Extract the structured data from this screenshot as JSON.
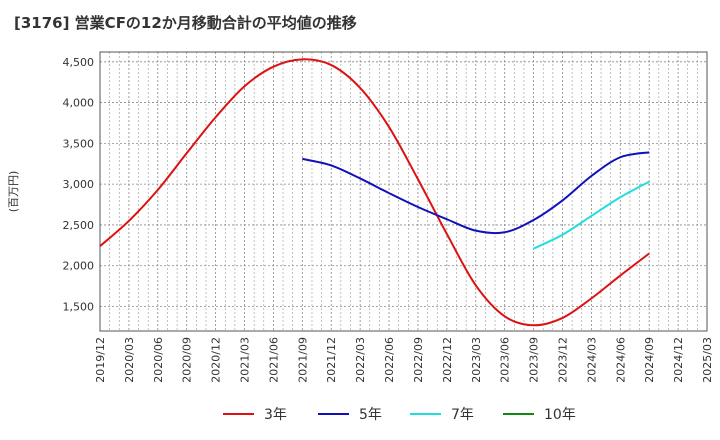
{
  "chart_data": {
    "type": "line",
    "title": "[3176]  営業CFの12か月移動合計の平均値の推移",
    "ylabel": "(百万円)",
    "xlabel": "",
    "ylim": [
      1200,
      4620
    ],
    "yticks": [
      1500,
      2000,
      2500,
      3000,
      3500,
      4000,
      4500
    ],
    "ytick_labels": [
      "1,500",
      "2,000",
      "2,500",
      "3,000",
      "3,500",
      "4,000",
      "4,500"
    ],
    "x_categories": [
      "2019/12",
      "2020/03",
      "2020/06",
      "2020/09",
      "2020/12",
      "2021/03",
      "2021/06",
      "2021/09",
      "2021/12",
      "2022/03",
      "2022/06",
      "2022/09",
      "2022/12",
      "2023/03",
      "2023/06",
      "2023/09",
      "2023/12",
      "2024/03",
      "2024/06",
      "2024/09",
      "2024/12",
      "2025/03"
    ],
    "grid": true,
    "legend_position": "bottom",
    "series": [
      {
        "name": "3年",
        "color": "#dd1111",
        "x": [
          "2019/12",
          "2020/03",
          "2020/06",
          "2020/09",
          "2020/12",
          "2021/03",
          "2021/06",
          "2021/09",
          "2021/12",
          "2022/03",
          "2022/06",
          "2022/09",
          "2022/12",
          "2023/03",
          "2023/06",
          "2023/09",
          "2023/12",
          "2024/03",
          "2024/06",
          "2024/09"
        ],
        "values": [
          2240,
          2550,
          2930,
          3380,
          3820,
          4200,
          4440,
          4530,
          4460,
          4180,
          3700,
          3060,
          2390,
          1760,
          1380,
          1270,
          1360,
          1600,
          1880,
          2150
        ]
      },
      {
        "name": "5年",
        "color": "#1111bb",
        "x": [
          "2021/09",
          "2021/12",
          "2022/03",
          "2022/06",
          "2022/09",
          "2022/12",
          "2023/03",
          "2023/06",
          "2023/09",
          "2023/12",
          "2024/03",
          "2024/06",
          "2024/09"
        ],
        "values": [
          3310,
          3230,
          3070,
          2890,
          2720,
          2570,
          2430,
          2410,
          2560,
          2800,
          3100,
          3330,
          3390
        ]
      },
      {
        "name": "7年",
        "color": "#22dddd",
        "x": [
          "2023/09",
          "2023/12",
          "2024/03",
          "2024/06",
          "2024/09"
        ],
        "values": [
          2210,
          2380,
          2610,
          2840,
          3030
        ]
      },
      {
        "name": "10年",
        "color": "#118811",
        "x": [],
        "values": []
      }
    ]
  }
}
